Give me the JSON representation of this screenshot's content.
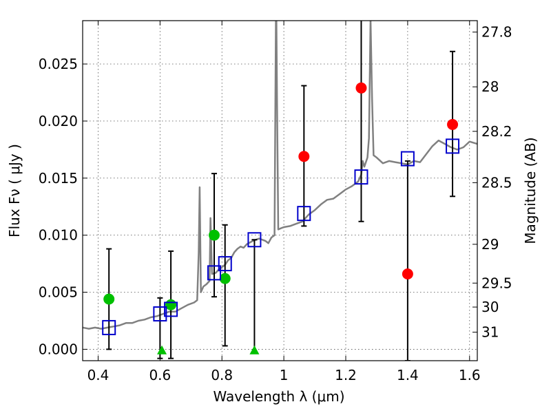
{
  "chart_data": {
    "type": "scatter",
    "title": "",
    "xlabel": "Wavelength  λ (μm)",
    "ylabel": "Flux  Fν  ( μJy )",
    "y2label": "Magnitude (AB)",
    "xlim": [
      0.35,
      1.625
    ],
    "ylim": [
      -0.001,
      0.0288
    ],
    "xticks": [
      0.4,
      0.6,
      0.8,
      1.0,
      1.2,
      1.4,
      1.6
    ],
    "xtick_labels": [
      "0.4",
      "0.6",
      "0.8",
      "1",
      "1.2",
      "1.4",
      "1.6"
    ],
    "yticks": [
      0.0,
      0.005,
      0.01,
      0.015,
      0.02,
      0.025
    ],
    "ytick_labels": [
      "0.000",
      "0.005",
      "0.010",
      "0.015",
      "0.020",
      "0.025"
    ],
    "y2ticks": [
      {
        "label": "27.8",
        "flux": 0.0278
      },
      {
        "label": "28",
        "flux": 0.023
      },
      {
        "label": "28.2",
        "flux": 0.0191
      },
      {
        "label": "28.5",
        "flux": 0.0146
      },
      {
        "label": "29",
        "flux": 0.0092
      },
      {
        "label": "29.5",
        "flux": 0.0058
      },
      {
        "label": "30",
        "flux": 0.0037
      },
      {
        "label": "31",
        "flux": 0.0015
      }
    ],
    "grid": true,
    "colors": {
      "model": "#808080",
      "green": "#00c000",
      "red": "#ff0000",
      "square": "#0000cc",
      "errorbar": "#000000"
    },
    "series": [
      {
        "kind": "line",
        "points": [
          [
            0.35,
            0.0019
          ],
          [
            0.37,
            0.0018
          ],
          [
            0.39,
            0.0019
          ],
          [
            0.41,
            0.0018
          ],
          [
            0.43,
            0.0019
          ],
          [
            0.45,
            0.002
          ],
          [
            0.47,
            0.0021
          ],
          [
            0.49,
            0.0023
          ],
          [
            0.51,
            0.0023
          ],
          [
            0.53,
            0.0025
          ],
          [
            0.55,
            0.0026
          ],
          [
            0.57,
            0.0028
          ],
          [
            0.59,
            0.0029
          ],
          [
            0.61,
            0.0031
          ],
          [
            0.63,
            0.0033
          ],
          [
            0.65,
            0.0033
          ],
          [
            0.67,
            0.0036
          ],
          [
            0.69,
            0.0039
          ],
          [
            0.71,
            0.0041
          ],
          [
            0.72,
            0.0043
          ],
          [
            0.725,
            0.0085
          ],
          [
            0.728,
            0.0142
          ],
          [
            0.732,
            0.005
          ],
          [
            0.74,
            0.0055
          ],
          [
            0.75,
            0.0057
          ],
          [
            0.76,
            0.006
          ],
          [
            0.763,
            0.0115
          ],
          [
            0.768,
            0.0066
          ],
          [
            0.78,
            0.0067
          ],
          [
            0.79,
            0.007
          ],
          [
            0.8,
            0.0072
          ],
          [
            0.81,
            0.0074
          ],
          [
            0.82,
            0.0078
          ],
          [
            0.83,
            0.008
          ],
          [
            0.84,
            0.0085
          ],
          [
            0.85,
            0.0088
          ],
          [
            0.86,
            0.009
          ],
          [
            0.87,
            0.0089
          ],
          [
            0.88,
            0.0092
          ],
          [
            0.9,
            0.0095
          ],
          [
            0.92,
            0.0097
          ],
          [
            0.94,
            0.0095
          ],
          [
            0.95,
            0.0093
          ],
          [
            0.96,
            0.0098
          ],
          [
            0.97,
            0.01
          ],
          [
            0.975,
            0.032
          ],
          [
            0.978,
            0.022
          ],
          [
            0.982,
            0.0105
          ],
          [
            0.99,
            0.0106
          ],
          [
            1.0,
            0.0107
          ],
          [
            1.02,
            0.0108
          ],
          [
            1.04,
            0.011
          ],
          [
            1.06,
            0.0112
          ],
          [
            1.08,
            0.0118
          ],
          [
            1.1,
            0.0122
          ],
          [
            1.12,
            0.0127
          ],
          [
            1.14,
            0.0131
          ],
          [
            1.16,
            0.0132
          ],
          [
            1.18,
            0.0136
          ],
          [
            1.2,
            0.014
          ],
          [
            1.22,
            0.0143
          ],
          [
            1.24,
            0.0147
          ],
          [
            1.25,
            0.0153
          ],
          [
            1.255,
            0.0165
          ],
          [
            1.26,
            0.016
          ],
          [
            1.27,
            0.0168
          ],
          [
            1.275,
            0.0185
          ],
          [
            1.28,
            0.029
          ],
          [
            1.285,
            0.022
          ],
          [
            1.29,
            0.017
          ],
          [
            1.3,
            0.0168
          ],
          [
            1.32,
            0.0163
          ],
          [
            1.34,
            0.0165
          ],
          [
            1.36,
            0.0164
          ],
          [
            1.38,
            0.0163
          ],
          [
            1.4,
            0.0162
          ],
          [
            1.42,
            0.0165
          ],
          [
            1.44,
            0.0164
          ],
          [
            1.46,
            0.0171
          ],
          [
            1.48,
            0.0178
          ],
          [
            1.5,
            0.0183
          ],
          [
            1.52,
            0.018
          ],
          [
            1.54,
            0.0177
          ],
          [
            1.56,
            0.0175
          ],
          [
            1.58,
            0.0177
          ],
          [
            1.6,
            0.0182
          ],
          [
            1.625,
            0.018
          ]
        ]
      },
      {
        "kind": "green-circle",
        "points": [
          [
            0.435,
            0.0044
          ],
          [
            0.635,
            0.0039
          ],
          [
            0.775,
            0.01
          ],
          [
            0.81,
            0.0062
          ]
        ]
      },
      {
        "kind": "green-triangle",
        "points": [
          [
            0.606,
            -0.0002
          ],
          [
            0.905,
            -0.0002
          ]
        ]
      },
      {
        "kind": "red-circle",
        "points": [
          [
            1.065,
            0.0169
          ],
          [
            1.25,
            0.0229
          ],
          [
            1.4,
            0.0066
          ],
          [
            1.545,
            0.0197
          ]
        ]
      },
      {
        "kind": "open-square",
        "points": [
          [
            0.435,
            0.0019
          ],
          [
            0.6,
            0.0031
          ],
          [
            0.635,
            0.0035
          ],
          [
            0.775,
            0.0067
          ],
          [
            0.81,
            0.0075
          ],
          [
            0.905,
            0.0096
          ],
          [
            1.065,
            0.0119
          ],
          [
            1.25,
            0.0151
          ],
          [
            1.4,
            0.0167
          ],
          [
            1.545,
            0.0178
          ]
        ]
      },
      {
        "kind": "errorbar",
        "bars": [
          [
            0.435,
            0.0,
            0.0088
          ],
          [
            0.6,
            -0.0008,
            0.0045
          ],
          [
            0.635,
            -0.0008,
            0.0086
          ],
          [
            0.775,
            0.0046,
            0.0154
          ],
          [
            0.81,
            0.0003,
            0.0109
          ],
          [
            0.905,
            -0.0002,
            0.0096
          ],
          [
            1.065,
            0.0108,
            0.0231
          ],
          [
            1.25,
            0.0112,
            0.029
          ],
          [
            1.4,
            -0.001,
            0.0165
          ],
          [
            1.545,
            0.0134,
            0.0261
          ]
        ]
      }
    ]
  }
}
